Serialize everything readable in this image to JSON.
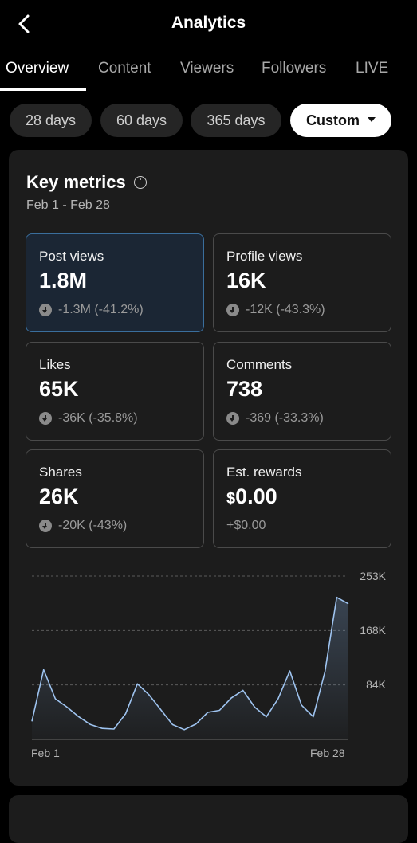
{
  "header": {
    "title": "Analytics",
    "back_icon": "chevron-left-icon"
  },
  "tabs": [
    {
      "label": "Overview",
      "active": true
    },
    {
      "label": "Content",
      "active": false
    },
    {
      "label": "Viewers",
      "active": false
    },
    {
      "label": "Followers",
      "active": false
    },
    {
      "label": "LIVE",
      "active": false
    }
  ],
  "ranges": [
    {
      "label": "28 days",
      "selected": false
    },
    {
      "label": "60 days",
      "selected": false
    },
    {
      "label": "365 days",
      "selected": false
    },
    {
      "label": "Custom",
      "selected": true
    }
  ],
  "key_metrics": {
    "title": "Key metrics",
    "date_range": "Feb 1 - Feb 28",
    "metrics": [
      {
        "label": "Post views",
        "value": "1.8M",
        "change": "-1.3M (-41.2%)",
        "selected": true
      },
      {
        "label": "Profile views",
        "value": "16K",
        "change": "-12K (-43.3%)"
      },
      {
        "label": "Likes",
        "value": "65K",
        "change": "-36K (-35.8%)"
      },
      {
        "label": "Comments",
        "value": "738",
        "change": "-369 (-33.3%)"
      },
      {
        "label": "Shares",
        "value": "26K",
        "change": "-20K (-43%)"
      },
      {
        "label": "Est. rewards",
        "currency": "$",
        "value": "0.00",
        "change": "+$0.00"
      }
    ]
  },
  "colors": {
    "accent": "#9ec3ef",
    "selected_border": "#3a6e9c",
    "card_bg": "#1c1c1c"
  },
  "chart_data": {
    "type": "area",
    "series": [
      {
        "values": [
          28,
          108,
          63,
          50,
          35,
          23,
          17,
          16,
          40,
          86,
          69,
          46,
          23,
          15,
          24,
          42,
          45,
          64,
          76,
          50,
          35,
          63,
          106,
          53,
          35,
          105,
          220,
          210
        ]
      }
    ],
    "x_labels": [
      "Feb 1",
      "Feb 28"
    ],
    "y_ticks": [
      "253K",
      "168K",
      "84K"
    ],
    "ylim": [
      0,
      253
    ],
    "grid": "dashed horizontal"
  }
}
